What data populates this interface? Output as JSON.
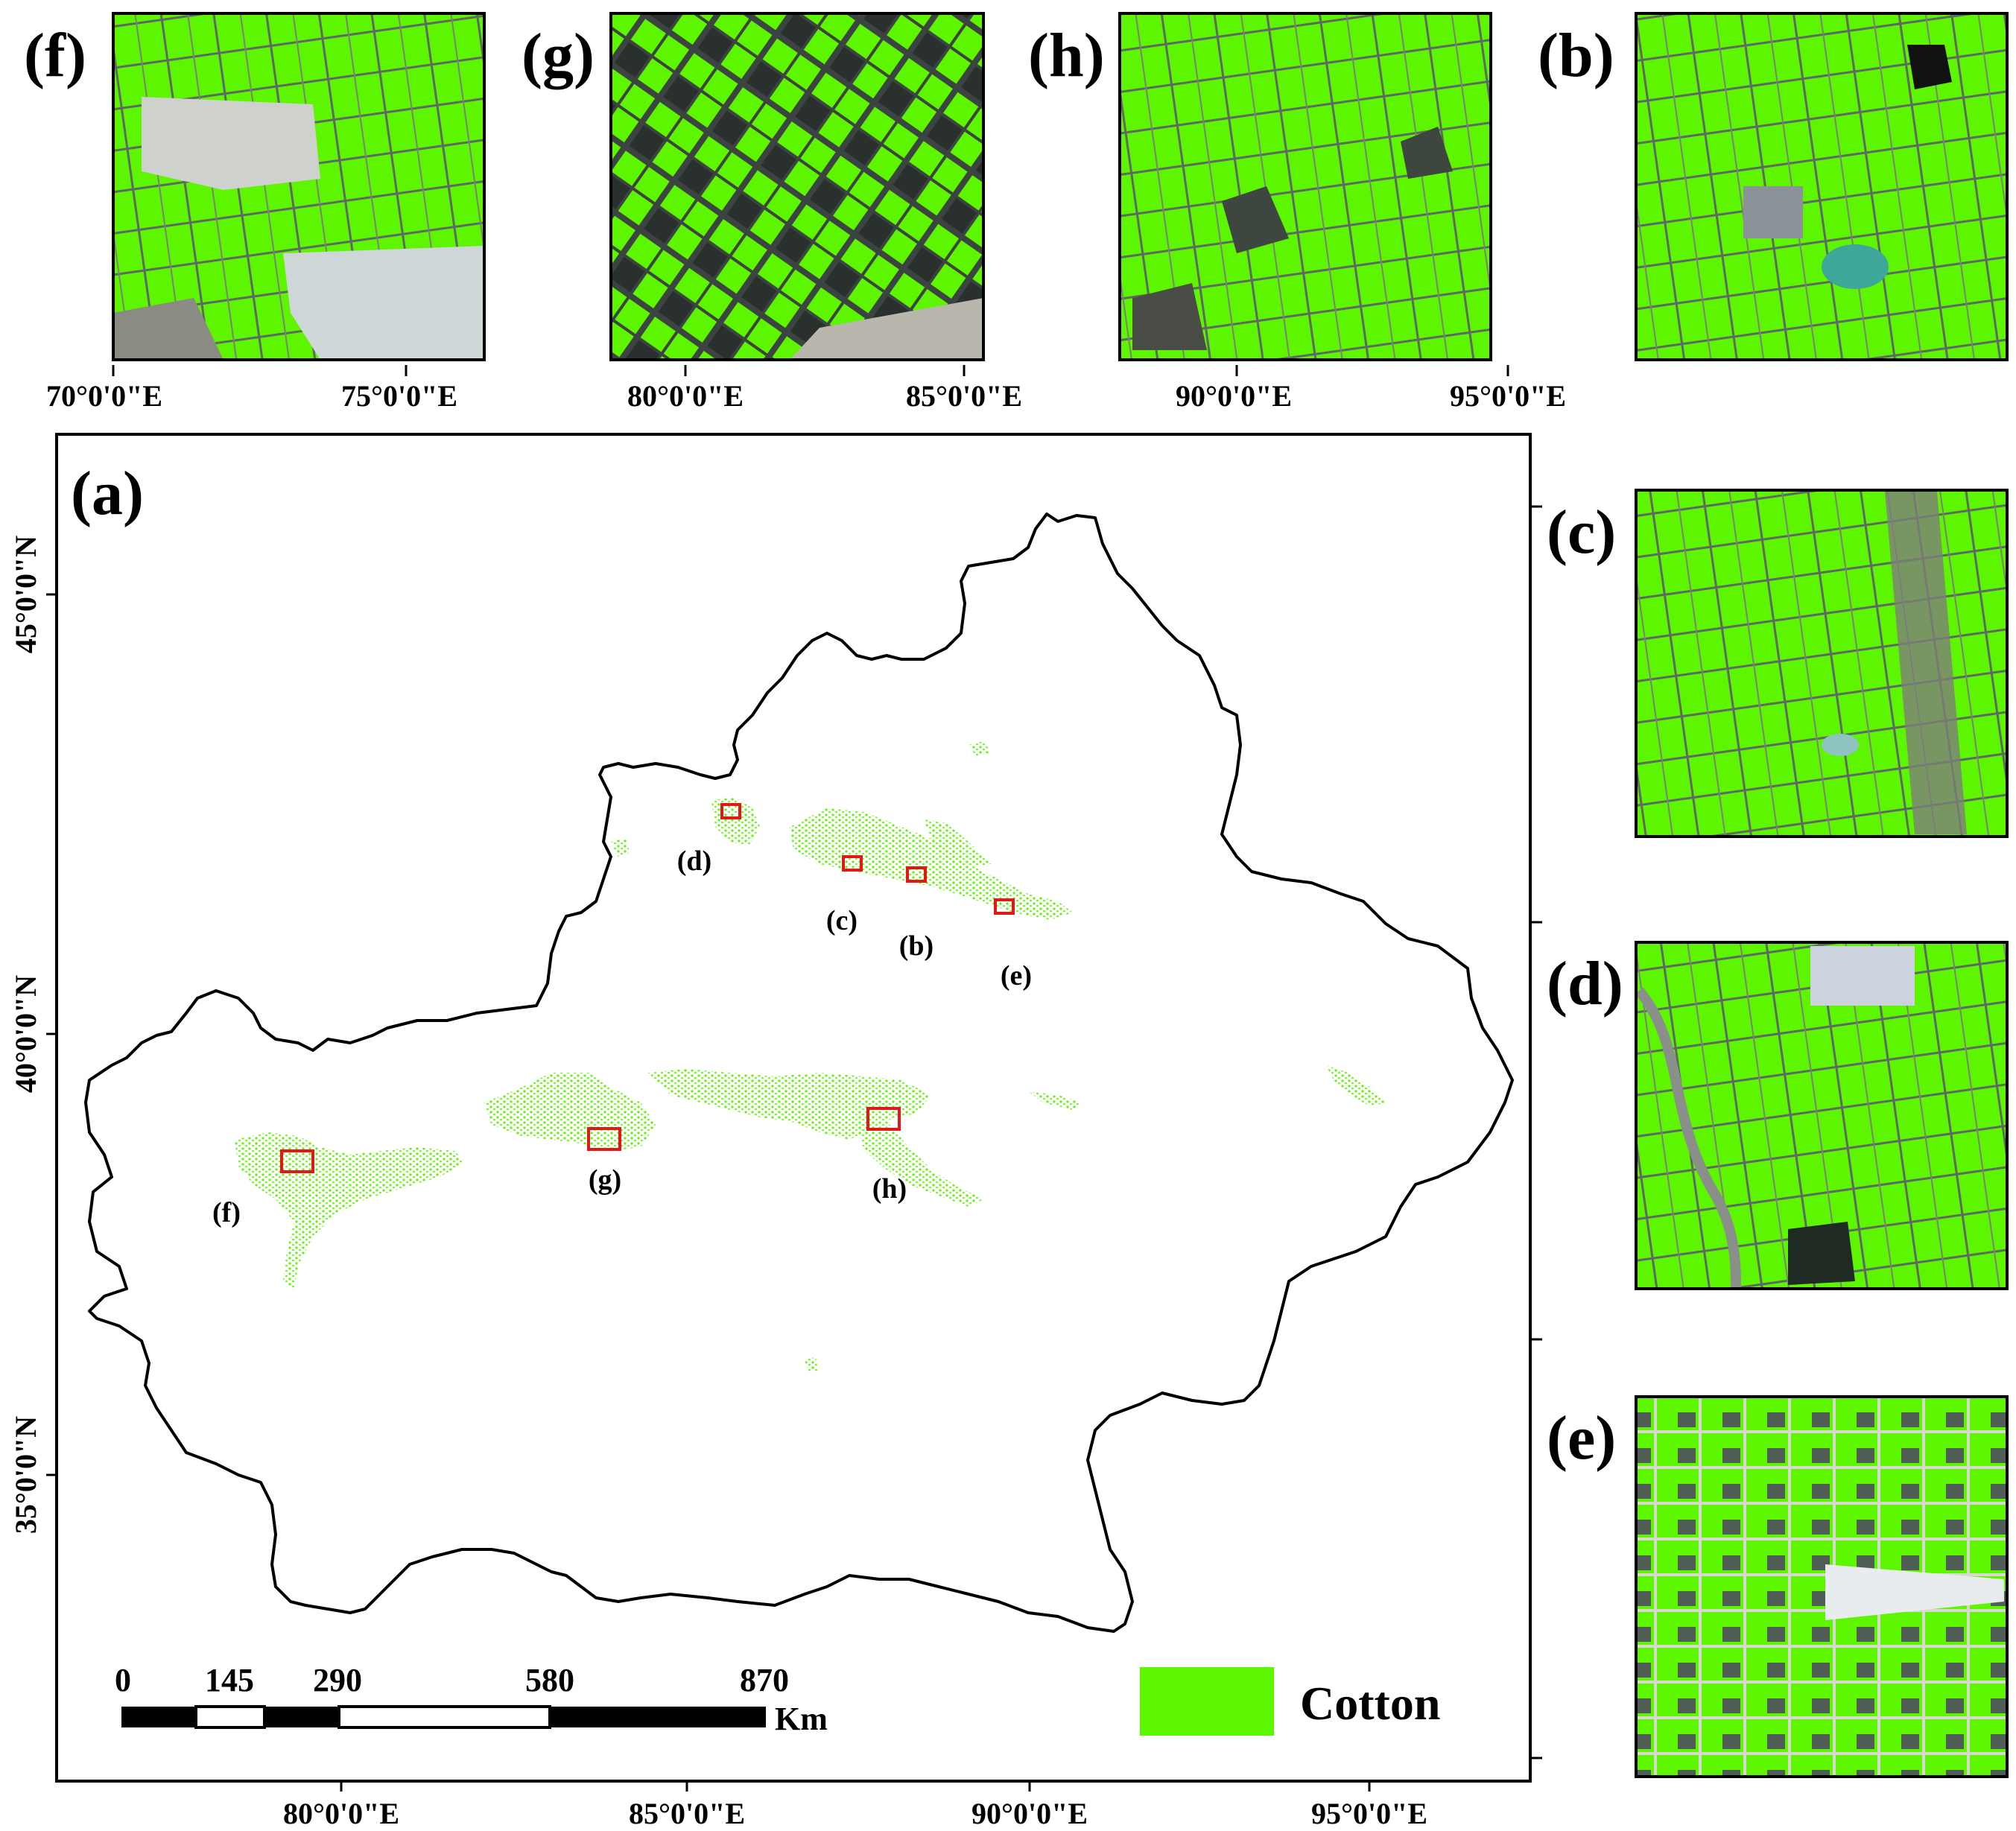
{
  "colors": {
    "cotton": "#5ef500",
    "boundary": "#000000",
    "sample_box": "#e01818",
    "frame": "#000000"
  },
  "main_panel": {
    "label": "(a)",
    "top_ticks": [
      "70°0'0\"E",
      "75°0'0\"E",
      "80°0'0\"E",
      "85°0'0\"E",
      "90°0'0\"E",
      "95°0'0\"E"
    ],
    "bottom_ticks": [
      "80°0'0\"E",
      "85°0'0\"E",
      "90°0'0\"E",
      "95°0'0\"E"
    ],
    "left_ticks": [
      "45°0'0\"N",
      "40°0'0\"N",
      "35°0'0\"N"
    ],
    "site_labels": [
      "(d)",
      "(c)",
      "(b)",
      "(e)",
      "(f)",
      "(g)",
      "(h)"
    ]
  },
  "legend": {
    "label": "Cotton"
  },
  "scale_bar": {
    "ticks": [
      "0",
      "145",
      "290",
      "580",
      "870"
    ],
    "unit": "Km"
  },
  "insets": [
    {
      "id": "f",
      "label": "(f)",
      "icon": "satellite-cotton-inset"
    },
    {
      "id": "g",
      "label": "(g)",
      "icon": "satellite-cotton-inset"
    },
    {
      "id": "h",
      "label": "(h)",
      "icon": "satellite-cotton-inset"
    },
    {
      "id": "b",
      "label": "(b)",
      "icon": "satellite-cotton-inset"
    },
    {
      "id": "c",
      "label": "(c)",
      "icon": "satellite-cotton-inset"
    },
    {
      "id": "d",
      "label": "(d)",
      "icon": "satellite-cotton-inset"
    },
    {
      "id": "e",
      "label": "(e)",
      "icon": "satellite-cotton-inset"
    }
  ]
}
